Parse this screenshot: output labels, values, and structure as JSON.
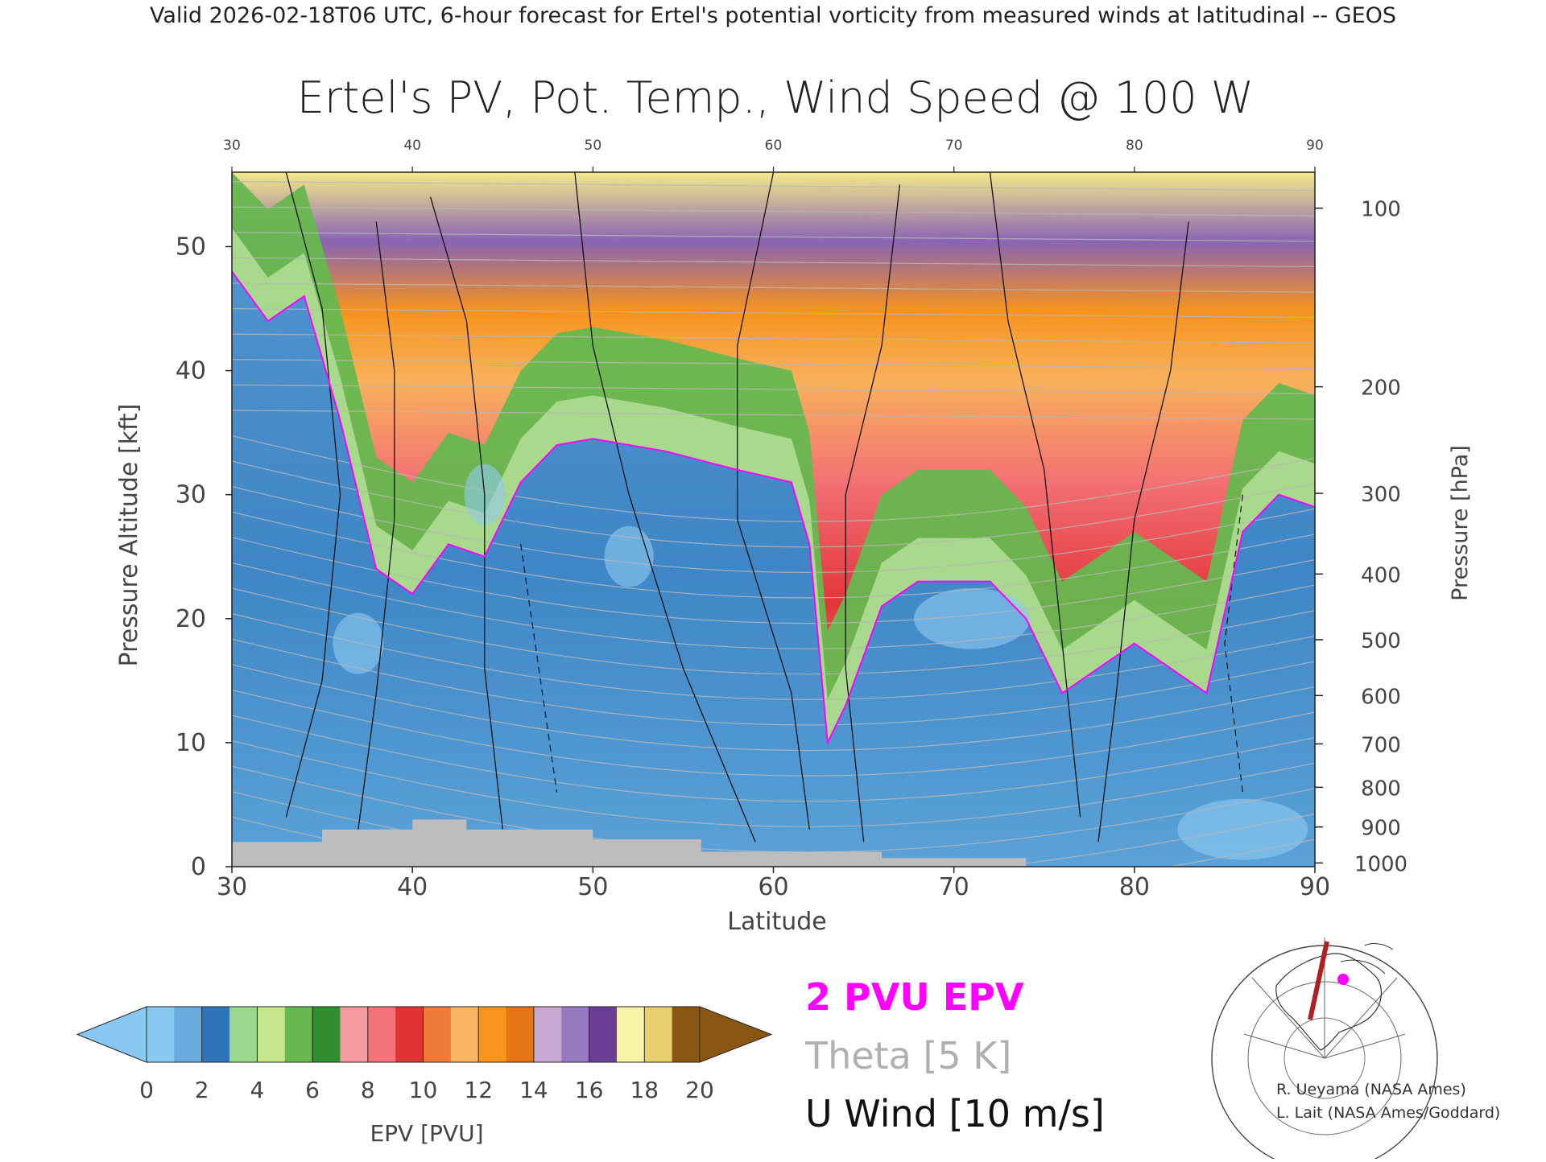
{
  "header_line": "Valid 2026-02-18T06 UTC, 6-hour forecast for Ertel's potential vorticity from measured winds at latitudinal -- GEOS",
  "chart_data": {
    "type": "heatmap",
    "title": "Ertel's PV, Pot. Temp., Wind Speed @ 100 W",
    "xlabel": "Latitude",
    "ylabel": "Pressure Altitude [kft]",
    "y2label": "Pressure [hPa]",
    "xlim": [
      30,
      90
    ],
    "ylim": [
      0,
      56
    ],
    "x_ticks": [
      "30",
      "40",
      "50",
      "60",
      "70",
      "80",
      "90"
    ],
    "y_ticks": [
      {
        "v": 0,
        "label": "0"
      },
      {
        "v": 10,
        "label": "10"
      },
      {
        "v": 20,
        "label": "20"
      },
      {
        "v": 30,
        "label": "30"
      },
      {
        "v": 40,
        "label": "40"
      },
      {
        "v": 50,
        "label": "50"
      }
    ],
    "pressure_ticks": [
      {
        "kft": 53.1,
        "label": "100"
      },
      {
        "kft": 38.7,
        "label": "200"
      },
      {
        "kft": 30.1,
        "label": "300"
      },
      {
        "kft": 23.6,
        "label": "400"
      },
      {
        "kft": 18.3,
        "label": "500"
      },
      {
        "kft": 13.8,
        "label": "600"
      },
      {
        "kft": 9.9,
        "label": "700"
      },
      {
        "kft": 6.4,
        "label": "800"
      },
      {
        "kft": 3.2,
        "label": "900"
      },
      {
        "kft": 0.3,
        "label": "1000"
      }
    ],
    "tropopause_2pvu_kft": [
      {
        "lat": 30,
        "kft": 48
      },
      {
        "lat": 32,
        "kft": 44
      },
      {
        "lat": 34,
        "kft": 46
      },
      {
        "lat": 36,
        "kft": 36
      },
      {
        "lat": 38,
        "kft": 24
      },
      {
        "lat": 40,
        "kft": 22
      },
      {
        "lat": 42,
        "kft": 26
      },
      {
        "lat": 44,
        "kft": 25
      },
      {
        "lat": 46,
        "kft": 31
      },
      {
        "lat": 48,
        "kft": 34
      },
      {
        "lat": 50,
        "kft": 34.5
      },
      {
        "lat": 54,
        "kft": 33.5
      },
      {
        "lat": 58,
        "kft": 32
      },
      {
        "lat": 61,
        "kft": 31
      },
      {
        "lat": 62,
        "kft": 26
      },
      {
        "lat": 63,
        "kft": 10
      },
      {
        "lat": 64,
        "kft": 13
      },
      {
        "lat": 66,
        "kft": 21
      },
      {
        "lat": 68,
        "kft": 23
      },
      {
        "lat": 72,
        "kft": 23
      },
      {
        "lat": 74,
        "kft": 20
      },
      {
        "lat": 76,
        "kft": 14
      },
      {
        "lat": 80,
        "kft": 18
      },
      {
        "lat": 82,
        "kft": 16
      },
      {
        "lat": 84,
        "kft": 14
      },
      {
        "lat": 86,
        "kft": 27
      },
      {
        "lat": 88,
        "kft": 30
      },
      {
        "lat": 90,
        "kft": 29
      }
    ],
    "colorbar": {
      "label": "EPV [PVU]",
      "ticks": [
        "0",
        "2",
        "4",
        "6",
        "8",
        "10",
        "12",
        "14",
        "16",
        "18",
        "20"
      ],
      "colors": [
        "#89c9f1",
        "#6aabde",
        "#2f74b8",
        "#9cd78e",
        "#c6e68c",
        "#66b84f",
        "#2f8f2f",
        "#f59aa0",
        "#f4737b",
        "#e03333",
        "#f07a3a",
        "#fbb563",
        "#f9951e",
        "#e57516",
        "#c8a7d3",
        "#9779bf",
        "#6a3d96",
        "#f7f3a7",
        "#e8cf6f",
        "#8a5614"
      ]
    },
    "legend": [
      {
        "label": "2 PVU EPV",
        "color": "#ff00ff"
      },
      {
        "label": "Theta [5 K]",
        "color": "#b0b0b0"
      },
      {
        "label": "U Wind [10 m/s]",
        "color": "#111111"
      }
    ]
  },
  "credits": [
    "R. Ueyama (NASA Ames)",
    "L. Lait (NASA Ames/Goddard)"
  ]
}
